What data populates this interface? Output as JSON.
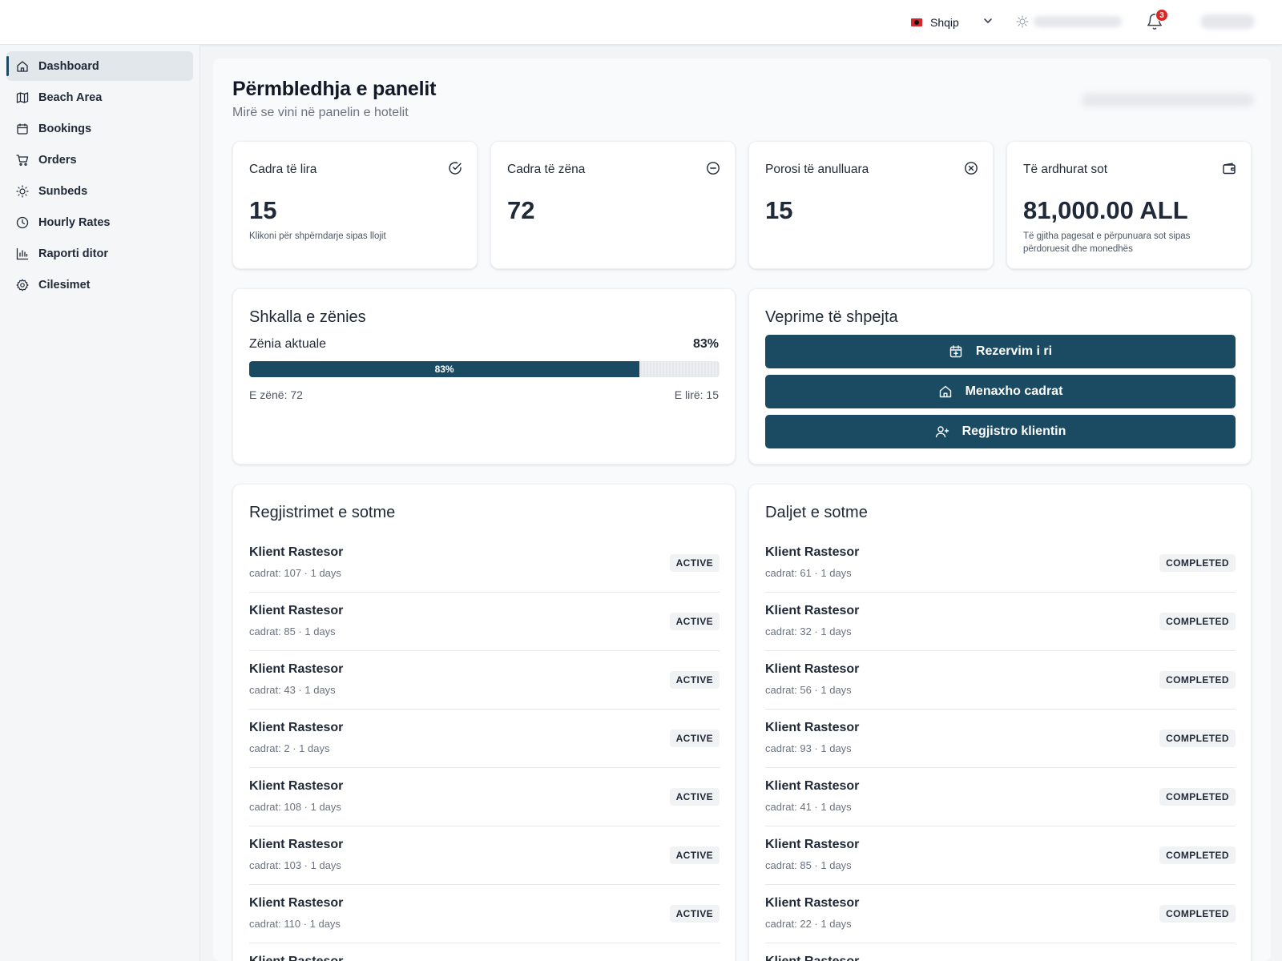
{
  "header": {
    "language": "Shqip",
    "notifications_count": "3"
  },
  "sidebar": {
    "items": [
      {
        "label": "Dashboard",
        "icon": "home-icon",
        "active": true
      },
      {
        "label": "Beach Area",
        "icon": "map-icon"
      },
      {
        "label": "Bookings",
        "icon": "calendar-icon"
      },
      {
        "label": "Orders",
        "icon": "cart-icon"
      },
      {
        "label": "Sunbeds",
        "icon": "sun-icon"
      },
      {
        "label": "Hourly Rates",
        "icon": "clock-icon"
      },
      {
        "label": "Raporti ditor",
        "icon": "bar-chart-icon"
      },
      {
        "label": "Cilesimet",
        "icon": "gear-icon"
      }
    ]
  },
  "page": {
    "title": "Përmbledhja e panelit",
    "subtitle": "Mirë se vini në panelin e hotelit"
  },
  "stats": [
    {
      "label": "Cadra të lira",
      "value": "15",
      "note": "Klikoni për shpërndarje sipas llojit",
      "icon": "check-circle-icon"
    },
    {
      "label": "Cadra të zëna",
      "value": "72",
      "note": "",
      "icon": "minus-circle-icon"
    },
    {
      "label": "Porosi të anulluara",
      "value": "15",
      "note": "",
      "icon": "x-circle-icon"
    },
    {
      "label": "Të ardhurat sot",
      "value": "81,000.00 ALL",
      "note": "Të gjitha pagesat e përpunuara sot sipas përdoruesit dhe monedhës",
      "icon": "wallet-icon"
    }
  ],
  "occupancy": {
    "title": "Shkalla e zënies",
    "label": "Zënia aktuale",
    "percent_text": "83%",
    "bar_text": "83%",
    "fill_fraction": 0.83,
    "occupied": "E zënë: 72",
    "free": "E lirë: 15"
  },
  "quick_actions": {
    "title": "Veprime të shpejta",
    "buttons": [
      {
        "label": "Rezervim i ri",
        "icon": "calendar-plus-icon"
      },
      {
        "label": "Menaxho cadrat",
        "icon": "home-icon"
      },
      {
        "label": "Regjistro klientin",
        "icon": "user-plus-icon"
      }
    ]
  },
  "checkins": {
    "title": "Regjistrimet e sotme",
    "rows": [
      {
        "name": "Klient Rastesor",
        "sub": "cadrat: 107 · 1 days",
        "status": "ACTIVE"
      },
      {
        "name": "Klient Rastesor",
        "sub": "cadrat: 85 · 1 days",
        "status": "ACTIVE"
      },
      {
        "name": "Klient Rastesor",
        "sub": "cadrat: 43 · 1 days",
        "status": "ACTIVE"
      },
      {
        "name": "Klient Rastesor",
        "sub": "cadrat: 2 · 1 days",
        "status": "ACTIVE"
      },
      {
        "name": "Klient Rastesor",
        "sub": "cadrat: 108 · 1 days",
        "status": "ACTIVE"
      },
      {
        "name": "Klient Rastesor",
        "sub": "cadrat: 103 · 1 days",
        "status": "ACTIVE"
      },
      {
        "name": "Klient Rastesor",
        "sub": "cadrat: 110 · 1 days",
        "status": "ACTIVE"
      },
      {
        "name": "Klient Rastesor",
        "sub": "",
        "status": ""
      }
    ]
  },
  "checkouts": {
    "title": "Daljet e sotme",
    "rows": [
      {
        "name": "Klient Rastesor",
        "sub": "cadrat: 61 · 1 days",
        "status": "COMPLETED"
      },
      {
        "name": "Klient Rastesor",
        "sub": "cadrat: 32 · 1 days",
        "status": "COMPLETED"
      },
      {
        "name": "Klient Rastesor",
        "sub": "cadrat: 56 · 1 days",
        "status": "COMPLETED"
      },
      {
        "name": "Klient Rastesor",
        "sub": "cadrat: 93 · 1 days",
        "status": "COMPLETED"
      },
      {
        "name": "Klient Rastesor",
        "sub": "cadrat: 41 · 1 days",
        "status": "COMPLETED"
      },
      {
        "name": "Klient Rastesor",
        "sub": "cadrat: 85 · 1 days",
        "status": "COMPLETED"
      },
      {
        "name": "Klient Rastesor",
        "sub": "cadrat: 22 · 1 days",
        "status": "COMPLETED"
      },
      {
        "name": "Klient Rastesor",
        "sub": "",
        "status": ""
      }
    ]
  },
  "colors": {
    "accent": "#1b4b63",
    "badge_bg": "#f1f2f4",
    "notification": "#dc2626"
  }
}
